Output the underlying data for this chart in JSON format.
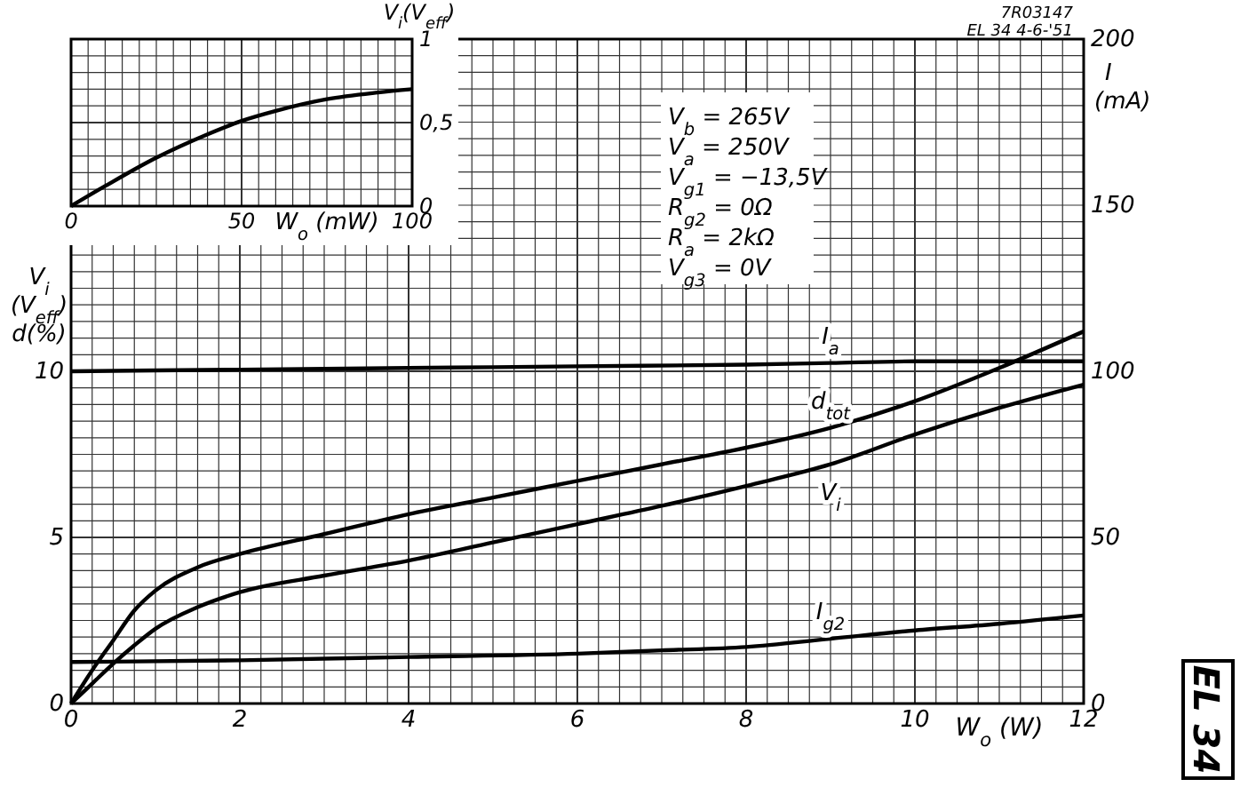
{
  "chart_data": [
    {
      "type": "line",
      "xlabel": "W$_{o}$ (W)",
      "ylabel": "V$_{i}$ (V$_{eff}$) d(%)",
      "y2label": "I (mA)",
      "grid": true,
      "marker": "none",
      "line_style": "solid",
      "xlim": [
        0,
        12
      ],
      "ylim": [
        0,
        20
      ],
      "y2lim": [
        0,
        200
      ],
      "xticks": [
        0,
        {
          "value": 0.25,
          "label": null
        },
        {
          "value": 0.5,
          "label": null
        },
        {
          "value": 0.75,
          "label": null
        },
        {
          "value": 1,
          "label": null
        },
        {
          "value": 1.25,
          "label": null
        },
        {
          "value": 1.5,
          "label": null
        },
        {
          "value": 1.75,
          "label": null
        },
        2,
        {
          "value": 2.25,
          "label": null
        },
        {
          "value": 2.5,
          "label": null
        },
        {
          "value": 2.75,
          "label": null
        },
        {
          "value": 3,
          "label": null
        },
        {
          "value": 3.25,
          "label": null
        },
        {
          "value": 3.5,
          "label": null
        },
        {
          "value": 3.75,
          "label": null
        },
        4,
        {
          "value": 4.25,
          "label": null
        },
        {
          "value": 4.5,
          "label": null
        },
        {
          "value": 4.75,
          "label": null
        },
        {
          "value": 5,
          "label": null
        },
        {
          "value": 5.25,
          "label": null
        },
        {
          "value": 5.5,
          "label": null
        },
        {
          "value": 5.75,
          "label": null
        },
        6,
        {
          "value": 6.25,
          "label": null
        },
        {
          "value": 6.5,
          "label": null
        },
        {
          "value": 6.75,
          "label": null
        },
        {
          "value": 7,
          "label": null
        },
        {
          "value": 7.25,
          "label": null
        },
        {
          "value": 7.5,
          "label": null
        },
        {
          "value": 7.75,
          "label": null
        },
        8,
        {
          "value": 8.25,
          "label": null
        },
        {
          "value": 8.5,
          "label": null
        },
        {
          "value": 8.75,
          "label": null
        },
        {
          "value": 9,
          "label": null
        },
        {
          "value": 9.25,
          "label": null
        },
        {
          "value": 9.5,
          "label": null
        },
        {
          "value": 9.75,
          "label": null
        },
        10,
        {
          "value": 10.25,
          "label": null
        },
        {
          "value": 10.5,
          "label": null
        },
        {
          "value": 10.75,
          "label": null
        },
        {
          "value": 11,
          "label": null
        },
        {
          "value": 11.25,
          "label": null
        },
        {
          "value": 11.5,
          "label": null
        },
        {
          "value": 11.75,
          "label": null
        },
        12
      ],
      "yticks": [
        0,
        {
          "value": 0.5,
          "label": null
        },
        {
          "value": 1,
          "label": null
        },
        {
          "value": 1.5,
          "label": null
        },
        {
          "value": 2,
          "label": null
        },
        {
          "value": 2.5,
          "label": null
        },
        {
          "value": 3,
          "label": null
        },
        {
          "value": 3.5,
          "label": null
        },
        {
          "value": 4,
          "label": null
        },
        {
          "value": 4.5,
          "label": null
        },
        5,
        {
          "value": 5.5,
          "label": null
        },
        {
          "value": 6,
          "label": null
        },
        {
          "value": 6.5,
          "label": null
        },
        {
          "value": 7,
          "label": null
        },
        {
          "value": 7.5,
          "label": null
        },
        {
          "value": 8,
          "label": null
        },
        {
          "value": 8.5,
          "label": null
        },
        {
          "value": 9,
          "label": null
        },
        {
          "value": 9.5,
          "label": null
        },
        10,
        {
          "value": 10.5,
          "label": null
        },
        {
          "value": 11,
          "label": null
        },
        {
          "value": 11.5,
          "label": null
        },
        {
          "value": 12,
          "label": null
        },
        {
          "value": 12.5,
          "label": null
        },
        {
          "value": 13,
          "label": null
        },
        {
          "value": 13.5,
          "label": null
        },
        {
          "value": 14,
          "label": null
        },
        {
          "value": 14.5,
          "label": null
        },
        {
          "value": 15,
          "label": null
        },
        {
          "value": 15.5,
          "label": null
        },
        {
          "value": 16,
          "label": null
        },
        {
          "value": 16.5,
          "label": null
        },
        {
          "value": 17,
          "label": null
        },
        {
          "value": 17.5,
          "label": null
        },
        {
          "value": 18,
          "label": null
        },
        {
          "value": 18.5,
          "label": null
        },
        {
          "value": 19,
          "label": null
        },
        {
          "value": 19.5,
          "label": null
        },
        {
          "value": 20,
          "label": null
        }
      ],
      "y2ticks": [
        0,
        50,
        100,
        150,
        200
      ],
      "series": [
        {
          "name": "I$_{a}$",
          "color": "#000000",
          "axis": "y2",
          "x": [
            0,
            2,
            4,
            6,
            8,
            9,
            10,
            11,
            12
          ],
          "values": [
            100,
            100.5,
            101,
            101.5,
            102,
            102.5,
            103,
            103,
            103
          ]
        },
        {
          "name": "d$_{tot}$",
          "color": "#000000",
          "x": [
            0,
            0.25,
            0.5,
            0.75,
            1,
            1.5,
            2,
            3,
            4,
            5,
            6,
            7,
            8,
            9,
            10,
            11,
            12
          ],
          "values": [
            0,
            1,
            1.9,
            2.8,
            3.4,
            4.1,
            4.5,
            5.1,
            5.7,
            6.2,
            6.7,
            7.2,
            7.7,
            8.3,
            9.1,
            10.1,
            11.2
          ]
        },
        {
          "name": "V$_{i}$",
          "color": "#000000",
          "x": [
            0,
            0.25,
            0.5,
            0.75,
            1,
            1.5,
            2,
            3,
            4,
            5,
            6,
            7,
            8,
            9,
            10,
            11,
            12
          ],
          "values": [
            0,
            0.6,
            1.2,
            1.75,
            2.25,
            2.9,
            3.35,
            3.85,
            4.3,
            4.85,
            5.4,
            5.95,
            6.55,
            7.2,
            8.1,
            8.9,
            9.6
          ]
        },
        {
          "name": "I$_{g2}$",
          "color": "#000000",
          "axis": "y2",
          "x": [
            0,
            2,
            4,
            6,
            7,
            8,
            9,
            10,
            11,
            12
          ],
          "values": [
            12.5,
            13,
            14,
            15,
            16,
            17,
            19.5,
            22,
            24,
            26.5
          ]
        }
      ],
      "annotations": [
        "7R03147",
        "EL 34 4-6-'51",
        "V$_{b}$ = 265V",
        "V$_{a}$ = 250V",
        "V$_{g1}$ = −13,5V",
        "R$_{g2}$ = 0Ω",
        "R$_{a}$ = 2kΩ",
        "V$_{g3}$ = 0V",
        "EL 34"
      ]
    },
    {
      "type": "line",
      "xlabel": "W$_{o}$ (mW)",
      "ylabel": "V$_{i}$(V$_{eff}$)",
      "grid": true,
      "marker": "none",
      "line_style": "solid",
      "xlim": [
        0,
        100
      ],
      "ylim": [
        0,
        1
      ],
      "xticks": [
        0,
        {
          "value": 5,
          "label": null
        },
        {
          "value": 10,
          "label": null
        },
        {
          "value": 15,
          "label": null
        },
        {
          "value": 20,
          "label": null
        },
        {
          "value": 25,
          "label": null
        },
        {
          "value": 30,
          "label": null
        },
        {
          "value": 35,
          "label": null
        },
        {
          "value": 40,
          "label": null
        },
        {
          "value": 45,
          "label": null
        },
        50,
        {
          "value": 55,
          "label": null
        },
        {
          "value": 60,
          "label": null
        },
        {
          "value": 65,
          "label": null
        },
        {
          "value": 70,
          "label": null
        },
        {
          "value": 75,
          "label": null
        },
        {
          "value": 80,
          "label": null
        },
        {
          "value": 85,
          "label": null
        },
        {
          "value": 90,
          "label": null
        },
        {
          "value": 95,
          "label": null
        },
        100
      ],
      "yticks": [
        0,
        {
          "value": 0.1,
          "label": null
        },
        {
          "value": 0.2,
          "label": null
        },
        {
          "value": 0.3,
          "label": null
        },
        {
          "value": 0.4,
          "label": null
        },
        {
          "value": 0.5,
          "label": "0,5"
        },
        {
          "value": 0.6,
          "label": null
        },
        {
          "value": 0.7,
          "label": null
        },
        {
          "value": 0.8,
          "label": null
        },
        {
          "value": 0.9,
          "label": null
        },
        1
      ],
      "series": [
        {
          "color": "#000000",
          "x": [
            0,
            10,
            25,
            40,
            50,
            60,
            75,
            90,
            100
          ],
          "values": [
            0,
            0.12,
            0.29,
            0.43,
            0.51,
            0.57,
            0.64,
            0.68,
            0.7
          ]
        }
      ]
    }
  ]
}
